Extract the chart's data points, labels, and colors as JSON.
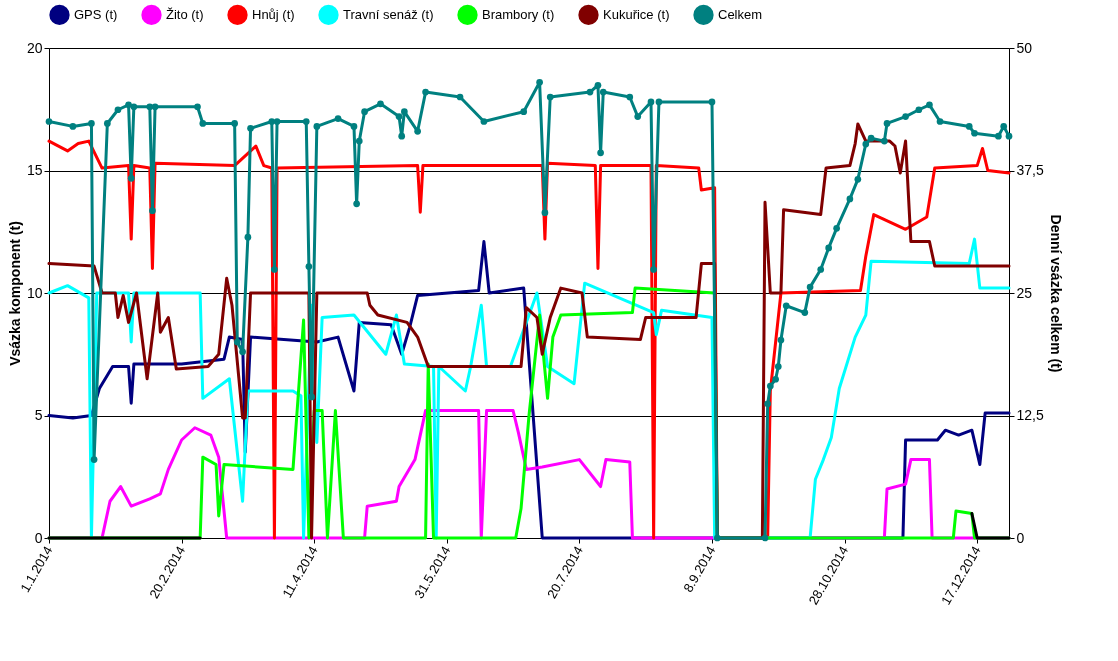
{
  "chart_data": {
    "type": "line",
    "xlabel": null,
    "ylabel": "Vsázka komponent (t)",
    "y2label": "Denní vsázka celkem (t)",
    "xlim": [
      "2014-01-01",
      "2014-12-29"
    ],
    "xticks": [
      {
        "value": "2014-01-01",
        "label": "1.1.2014"
      },
      {
        "value": "2014-02-20",
        "label": "20.2.2014"
      },
      {
        "value": "2014-04-11",
        "label": "11.4.2014"
      },
      {
        "value": "2014-05-31",
        "label": "31.5.2014"
      },
      {
        "value": "2014-07-20",
        "label": "20.7.2014"
      },
      {
        "value": "2014-09-08",
        "label": "8.9.2014"
      },
      {
        "value": "2014-10-28",
        "label": "28.10.2014"
      },
      {
        "value": "2014-12-17",
        "label": "17.12.2014"
      }
    ],
    "ylim": [
      0,
      20
    ],
    "yticks": [
      0,
      5,
      10,
      15,
      20
    ],
    "y2lim": [
      0,
      50
    ],
    "y2ticks": [
      0,
      {
        "value": 12.5,
        "label": "12,5"
      },
      25,
      {
        "value": 37.5,
        "label": "37,5"
      },
      50
    ],
    "grid": "y",
    "legend": "top",
    "marker": "none",
    "line_style": "solid",
    "series": [
      {
        "name": "GPS (t)",
        "color": "#000080",
        "x": [
          "2014-01-01",
          "2014-01-10",
          "2014-01-17",
          "2014-01-20",
          "2014-01-25",
          "2014-01-31",
          "2014-02-01",
          "2014-02-02",
          "2014-02-20",
          "2014-03-08",
          "2014-03-10",
          "2014-03-15",
          "2014-03-16",
          "2014-03-18",
          "2014-04-12",
          "2014-04-20",
          "2014-04-26",
          "2014-04-28",
          "2014-05-10",
          "2014-05-14",
          "2014-05-17",
          "2014-05-20",
          "2014-06-12",
          "2014-06-14",
          "2014-06-16",
          "2014-06-29",
          "2014-07-06",
          "2014-11-19",
          "2014-11-20",
          "2014-12-02",
          "2014-12-05",
          "2014-12-10",
          "2014-12-15",
          "2014-12-18",
          "2014-12-20",
          "2014-12-29"
        ],
        "values": [
          5.0,
          4.9,
          5.0,
          6.1,
          7.0,
          7.0,
          5.5,
          7.1,
          7.1,
          7.3,
          8.2,
          8.1,
          3.5,
          8.2,
          8.0,
          8.2,
          6.0,
          8.8,
          8.7,
          7.5,
          8.6,
          9.9,
          10.1,
          12.1,
          10.0,
          10.2,
          0,
          0,
          4.0,
          4.0,
          4.4,
          4.2,
          4.4,
          3.0,
          5.1,
          5.1
        ]
      },
      {
        "name": "Žito (t)",
        "color": "#ff00ff",
        "x": [
          "2014-01-01",
          "2014-01-21",
          "2014-01-24",
          "2014-01-28",
          "2014-02-01",
          "2014-02-08",
          "2014-02-12",
          "2014-02-15",
          "2014-02-20",
          "2014-02-25",
          "2014-03-03",
          "2014-03-06",
          "2014-03-09",
          "2014-04-30",
          "2014-05-01",
          "2014-05-12",
          "2014-05-13",
          "2014-05-19",
          "2014-05-23",
          "2014-06-12",
          "2014-06-13",
          "2014-06-15",
          "2014-06-25",
          "2014-06-27",
          "2014-06-30",
          "2014-07-06",
          "2014-07-20",
          "2014-07-28",
          "2014-07-30",
          "2014-08-08",
          "2014-08-09",
          "2014-11-12",
          "2014-11-13",
          "2014-11-20",
          "2014-11-22",
          "2014-11-29",
          "2014-11-30",
          "2014-12-29"
        ],
        "values": [
          0,
          0,
          1.5,
          2.1,
          1.3,
          1.6,
          1.8,
          2.8,
          4.0,
          4.5,
          4.2,
          3.3,
          0,
          0,
          1.3,
          1.5,
          2.1,
          3.2,
          5.2,
          5.2,
          0,
          5.2,
          5.2,
          4.3,
          2.8,
          2.9,
          3.2,
          2.1,
          3.2,
          3.1,
          0,
          0,
          2.0,
          2.2,
          3.2,
          3.2,
          0,
          0
        ]
      },
      {
        "name": "Hnůj (t)",
        "color": "#ff0000",
        "x": [
          "2014-01-01",
          "2014-01-08",
          "2014-01-12",
          "2014-01-16",
          "2014-01-21",
          "2014-01-31",
          "2014-02-01",
          "2014-02-02",
          "2014-02-08",
          "2014-02-09",
          "2014-02-10",
          "2014-03-12",
          "2014-03-20",
          "2014-03-23",
          "2014-03-26",
          "2014-03-27",
          "2014-03-28",
          "2014-05-20",
          "2014-05-21",
          "2014-05-22",
          "2014-07-06",
          "2014-07-07",
          "2014-07-08",
          "2014-07-26",
          "2014-07-27",
          "2014-07-28",
          "2014-08-16",
          "2014-08-17",
          "2014-08-18",
          "2014-09-03",
          "2014-09-04",
          "2014-09-09",
          "2014-09-10",
          "2014-09-29",
          "2014-09-30",
          "2014-10-04",
          "2014-11-03",
          "2014-11-05",
          "2014-11-08",
          "2014-11-20",
          "2014-11-28",
          "2014-12-01",
          "2014-12-17",
          "2014-12-19",
          "2014-12-21",
          "2014-12-29"
        ],
        "values": [
          16.2,
          15.8,
          16.1,
          16.2,
          15.1,
          15.2,
          12.2,
          15.2,
          15.1,
          11.0,
          15.3,
          15.2,
          16.0,
          15.2,
          15.1,
          0,
          15.1,
          15.2,
          13.3,
          15.2,
          15.2,
          12.2,
          15.3,
          15.2,
          11.0,
          15.2,
          15.2,
          0,
          15.2,
          15.1,
          14.2,
          14.3,
          0,
          0,
          6.0,
          10.0,
          10.1,
          11.5,
          13.2,
          12.6,
          13.1,
          15.1,
          15.2,
          15.9,
          15.0,
          14.9
        ]
      },
      {
        "name": "Travní senáž (t)",
        "color": "#00ffff",
        "x": [
          "2014-01-01",
          "2014-01-08",
          "2014-01-16",
          "2014-01-17",
          "2014-01-19",
          "2014-01-31",
          "2014-02-01",
          "2014-02-02",
          "2014-02-27",
          "2014-02-28",
          "2014-03-10",
          "2014-03-15",
          "2014-03-17",
          "2014-04-03",
          "2014-04-06",
          "2014-04-07",
          "2014-04-10",
          "2014-04-12",
          "2014-04-14",
          "2014-04-26",
          "2014-05-08",
          "2014-05-12",
          "2014-05-15",
          "2014-05-26",
          "2014-05-27",
          "2014-05-28",
          "2014-06-07",
          "2014-06-09",
          "2014-06-13",
          "2014-06-15",
          "2014-06-24",
          "2014-07-04",
          "2014-07-08",
          "2014-07-18",
          "2014-07-22",
          "2014-08-17",
          "2014-08-18",
          "2014-08-20",
          "2014-09-08",
          "2014-09-09",
          "2014-10-15",
          "2014-10-17",
          "2014-10-20",
          "2014-10-23",
          "2014-10-26",
          "2014-11-01",
          "2014-11-05",
          "2014-11-07",
          "2014-12-14",
          "2014-12-16",
          "2014-12-18",
          "2014-12-29"
        ],
        "values": [
          10.0,
          10.3,
          9.8,
          0,
          10.0,
          10.0,
          8.0,
          10.0,
          10.0,
          5.7,
          6.5,
          1.5,
          6.0,
          6.0,
          5.8,
          0,
          9.5,
          3.9,
          9.0,
          9.1,
          7.5,
          9.1,
          7.1,
          7.0,
          0,
          7.0,
          6.0,
          7.0,
          9.5,
          7.0,
          7.0,
          10.0,
          7.0,
          6.3,
          10.4,
          9.2,
          8.3,
          9.3,
          9.0,
          0,
          0,
          2.4,
          3.2,
          4.1,
          6.1,
          8.2,
          9.1,
          11.3,
          11.2,
          12.2,
          10.2,
          10.2
        ]
      },
      {
        "name": "Brambory (t)",
        "color": "#00ff00",
        "x": [
          "2014-01-01",
          "2014-02-27",
          "2014-02-28",
          "2014-03-05",
          "2014-03-06",
          "2014-03-08",
          "2014-04-03",
          "2014-04-07",
          "2014-04-09",
          "2014-04-11",
          "2014-04-14",
          "2014-04-16",
          "2014-04-19",
          "2014-04-22",
          "2014-05-23",
          "2014-05-24",
          "2014-05-26",
          "2014-06-26",
          "2014-06-28",
          "2014-07-01",
          "2014-07-05",
          "2014-07-08",
          "2014-07-10",
          "2014-07-13",
          "2014-08-09",
          "2014-08-10",
          "2014-09-09",
          "2014-09-10",
          "2014-12-08",
          "2014-12-09",
          "2014-12-15",
          "2014-12-16",
          "2014-12-29"
        ],
        "values": [
          0,
          0,
          3.3,
          3.0,
          0.9,
          3.0,
          2.8,
          8.9,
          0,
          5.2,
          5.2,
          0,
          5.2,
          0,
          0,
          7.1,
          0,
          0,
          1.2,
          5.0,
          9.1,
          5.7,
          8.2,
          9.1,
          9.2,
          10.2,
          10.0,
          0,
          0,
          1.1,
          1.0,
          0,
          0
        ]
      },
      {
        "name": "Kukuřice (t)",
        "color": "#800000",
        "x": [
          "2014-01-01",
          "2014-01-18",
          "2014-01-21",
          "2014-01-26",
          "2014-01-27",
          "2014-01-29",
          "2014-01-31",
          "2014-02-03",
          "2014-02-07",
          "2014-02-11",
          "2014-02-12",
          "2014-02-15",
          "2014-02-18",
          "2014-03-02",
          "2014-03-06",
          "2014-03-09",
          "2014-03-11",
          "2014-03-15",
          "2014-03-16",
          "2014-03-18",
          "2014-04-09",
          "2014-04-10",
          "2014-04-12",
          "2014-05-01",
          "2014-05-02",
          "2014-05-05",
          "2014-05-16",
          "2014-05-20",
          "2014-05-24",
          "2014-06-28",
          "2014-06-30",
          "2014-07-04",
          "2014-07-06",
          "2014-07-09",
          "2014-07-13",
          "2014-07-21",
          "2014-07-23",
          "2014-08-12",
          "2014-08-14",
          "2014-09-02",
          "2014-09-04",
          "2014-09-09",
          "2014-09-10",
          "2014-09-27",
          "2014-09-28",
          "2014-09-30",
          "2014-10-04",
          "2014-10-05",
          "2014-10-19",
          "2014-10-21",
          "2014-10-30",
          "2014-11-01",
          "2014-11-02",
          "2014-11-05",
          "2014-11-14",
          "2014-11-16",
          "2014-11-18",
          "2014-11-20",
          "2014-11-22",
          "2014-11-29",
          "2014-12-01",
          "2014-12-29"
        ],
        "values": [
          11.2,
          11.1,
          10.0,
          10.0,
          9.0,
          9.9,
          8.8,
          10.0,
          6.5,
          10.0,
          8.4,
          9.0,
          6.9,
          7.0,
          7.5,
          10.6,
          9.5,
          4.9,
          4.9,
          10.0,
          10.0,
          0,
          10.0,
          10.0,
          9.5,
          9.1,
          8.8,
          8.2,
          7.0,
          7.0,
          9.4,
          9.0,
          7.5,
          9.0,
          10.2,
          10.0,
          8.2,
          8.1,
          9.0,
          9.0,
          11.2,
          11.2,
          0,
          0,
          13.7,
          10.0,
          10.0,
          13.4,
          13.2,
          15.1,
          15.2,
          16.1,
          16.9,
          16.2,
          16.2,
          16.0,
          14.9,
          16.2,
          12.1,
          12.1,
          11.1,
          11.1
        ]
      },
      {
        "name": "Celkem",
        "color": "#008080",
        "axis": "y2",
        "marker": "circle",
        "x": [
          "2014-01-01",
          "2014-01-10",
          "2014-01-17",
          "2014-01-18",
          "2014-01-23",
          "2014-01-27",
          "2014-01-31",
          "2014-02-01",
          "2014-02-02",
          "2014-02-08",
          "2014-02-09",
          "2014-02-10",
          "2014-02-26",
          "2014-02-28",
          "2014-03-12",
          "2014-03-13",
          "2014-03-15",
          "2014-03-17",
          "2014-03-18",
          "2014-03-26",
          "2014-03-27",
          "2014-03-28",
          "2014-04-08",
          "2014-04-09",
          "2014-04-10",
          "2014-04-12",
          "2014-04-20",
          "2014-04-26",
          "2014-04-27",
          "2014-04-28",
          "2014-04-30",
          "2014-05-06",
          "2014-05-13",
          "2014-05-14",
          "2014-05-15",
          "2014-05-20",
          "2014-05-23",
          "2014-06-05",
          "2014-06-14",
          "2014-06-29",
          "2014-07-05",
          "2014-07-07",
          "2014-07-09",
          "2014-07-24",
          "2014-07-27",
          "2014-07-28",
          "2014-07-29",
          "2014-08-08",
          "2014-08-11",
          "2014-08-16",
          "2014-08-17",
          "2014-08-19",
          "2014-09-08",
          "2014-09-10",
          "2014-09-28",
          "2014-09-29",
          "2014-09-30",
          "2014-10-02",
          "2014-10-03",
          "2014-10-04",
          "2014-10-06",
          "2014-10-13",
          "2014-10-15",
          "2014-10-19",
          "2014-10-22",
          "2014-10-25",
          "2014-10-30",
          "2014-11-02",
          "2014-11-05",
          "2014-11-07",
          "2014-11-12",
          "2014-11-13",
          "2014-11-20",
          "2014-11-25",
          "2014-11-29",
          "2014-12-03",
          "2014-12-14",
          "2014-12-16",
          "2014-12-25",
          "2014-12-27",
          "2014-12-29"
        ],
        "values": [
          42.5,
          42.0,
          42.3,
          8.0,
          42.3,
          43.7,
          44.2,
          36.7,
          44.0,
          44.0,
          33.4,
          44.0,
          44.0,
          42.3,
          42.3,
          20.0,
          19.0,
          30.7,
          41.8,
          42.5,
          27.4,
          42.5,
          42.5,
          27.7,
          14.4,
          42.0,
          42.8,
          42.0,
          34.1,
          40.5,
          43.5,
          44.3,
          43.0,
          41.0,
          43.5,
          41.5,
          45.5,
          45.0,
          42.5,
          43.5,
          46.5,
          33.2,
          45.0,
          45.5,
          46.2,
          39.3,
          45.5,
          45.0,
          43.0,
          44.5,
          27.4,
          44.5,
          44.5,
          0,
          0,
          13.7,
          15.5,
          16.2,
          17.5,
          20.2,
          23.7,
          23.0,
          25.6,
          27.4,
          29.6,
          31.6,
          34.6,
          36.6,
          40.2,
          40.8,
          40.5,
          42.3,
          43.0,
          43.7,
          44.2,
          42.5,
          42.0,
          41.3,
          41.0,
          42.0,
          41.0
        ]
      },
      {
        "color": "#000000",
        "x": [
          "2014-01-01",
          "2014-02-27",
          "2014-03-01",
          "2014-12-14",
          "2014-12-15",
          "2014-12-17",
          "2014-12-29"
        ],
        "values": [
          0,
          0,
          null,
          null,
          1.0,
          0,
          0
        ]
      }
    ]
  }
}
